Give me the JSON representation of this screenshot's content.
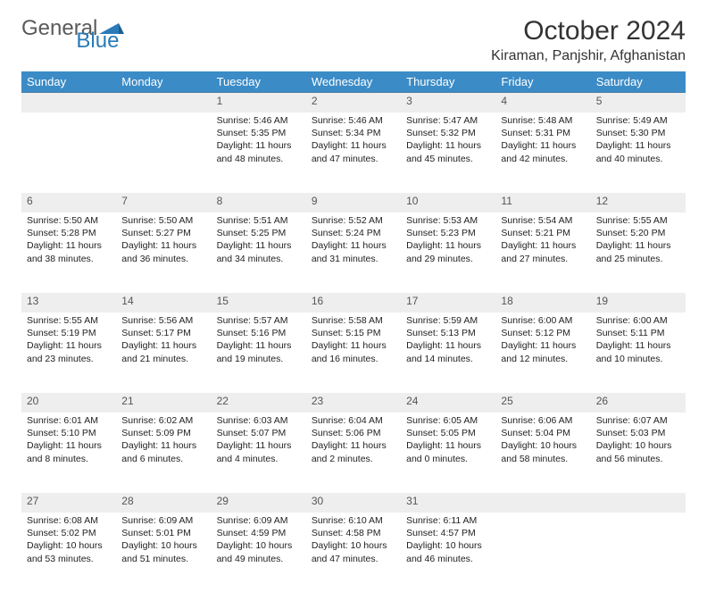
{
  "brand": {
    "part1": "General",
    "part2": "Blue",
    "mark_color": "#2a7ab8"
  },
  "title": "October 2024",
  "location": "Kiraman, Panjshir, Afghanistan",
  "colors": {
    "header_bg": "#3b8bc6",
    "header_fg": "#ffffff",
    "daynum_bg": "#eeeeee",
    "daynum_fg": "#555555",
    "divider": "#4a7ba5",
    "text": "#222222"
  },
  "weekdays": [
    "Sunday",
    "Monday",
    "Tuesday",
    "Wednesday",
    "Thursday",
    "Friday",
    "Saturday"
  ],
  "weeks": [
    [
      null,
      null,
      {
        "n": "1",
        "sr": "Sunrise: 5:46 AM",
        "ss": "Sunset: 5:35 PM",
        "dl": "Daylight: 11 hours and 48 minutes."
      },
      {
        "n": "2",
        "sr": "Sunrise: 5:46 AM",
        "ss": "Sunset: 5:34 PM",
        "dl": "Daylight: 11 hours and 47 minutes."
      },
      {
        "n": "3",
        "sr": "Sunrise: 5:47 AM",
        "ss": "Sunset: 5:32 PM",
        "dl": "Daylight: 11 hours and 45 minutes."
      },
      {
        "n": "4",
        "sr": "Sunrise: 5:48 AM",
        "ss": "Sunset: 5:31 PM",
        "dl": "Daylight: 11 hours and 42 minutes."
      },
      {
        "n": "5",
        "sr": "Sunrise: 5:49 AM",
        "ss": "Sunset: 5:30 PM",
        "dl": "Daylight: 11 hours and 40 minutes."
      }
    ],
    [
      {
        "n": "6",
        "sr": "Sunrise: 5:50 AM",
        "ss": "Sunset: 5:28 PM",
        "dl": "Daylight: 11 hours and 38 minutes."
      },
      {
        "n": "7",
        "sr": "Sunrise: 5:50 AM",
        "ss": "Sunset: 5:27 PM",
        "dl": "Daylight: 11 hours and 36 minutes."
      },
      {
        "n": "8",
        "sr": "Sunrise: 5:51 AM",
        "ss": "Sunset: 5:25 PM",
        "dl": "Daylight: 11 hours and 34 minutes."
      },
      {
        "n": "9",
        "sr": "Sunrise: 5:52 AM",
        "ss": "Sunset: 5:24 PM",
        "dl": "Daylight: 11 hours and 31 minutes."
      },
      {
        "n": "10",
        "sr": "Sunrise: 5:53 AM",
        "ss": "Sunset: 5:23 PM",
        "dl": "Daylight: 11 hours and 29 minutes."
      },
      {
        "n": "11",
        "sr": "Sunrise: 5:54 AM",
        "ss": "Sunset: 5:21 PM",
        "dl": "Daylight: 11 hours and 27 minutes."
      },
      {
        "n": "12",
        "sr": "Sunrise: 5:55 AM",
        "ss": "Sunset: 5:20 PM",
        "dl": "Daylight: 11 hours and 25 minutes."
      }
    ],
    [
      {
        "n": "13",
        "sr": "Sunrise: 5:55 AM",
        "ss": "Sunset: 5:19 PM",
        "dl": "Daylight: 11 hours and 23 minutes."
      },
      {
        "n": "14",
        "sr": "Sunrise: 5:56 AM",
        "ss": "Sunset: 5:17 PM",
        "dl": "Daylight: 11 hours and 21 minutes."
      },
      {
        "n": "15",
        "sr": "Sunrise: 5:57 AM",
        "ss": "Sunset: 5:16 PM",
        "dl": "Daylight: 11 hours and 19 minutes."
      },
      {
        "n": "16",
        "sr": "Sunrise: 5:58 AM",
        "ss": "Sunset: 5:15 PM",
        "dl": "Daylight: 11 hours and 16 minutes."
      },
      {
        "n": "17",
        "sr": "Sunrise: 5:59 AM",
        "ss": "Sunset: 5:13 PM",
        "dl": "Daylight: 11 hours and 14 minutes."
      },
      {
        "n": "18",
        "sr": "Sunrise: 6:00 AM",
        "ss": "Sunset: 5:12 PM",
        "dl": "Daylight: 11 hours and 12 minutes."
      },
      {
        "n": "19",
        "sr": "Sunrise: 6:00 AM",
        "ss": "Sunset: 5:11 PM",
        "dl": "Daylight: 11 hours and 10 minutes."
      }
    ],
    [
      {
        "n": "20",
        "sr": "Sunrise: 6:01 AM",
        "ss": "Sunset: 5:10 PM",
        "dl": "Daylight: 11 hours and 8 minutes."
      },
      {
        "n": "21",
        "sr": "Sunrise: 6:02 AM",
        "ss": "Sunset: 5:09 PM",
        "dl": "Daylight: 11 hours and 6 minutes."
      },
      {
        "n": "22",
        "sr": "Sunrise: 6:03 AM",
        "ss": "Sunset: 5:07 PM",
        "dl": "Daylight: 11 hours and 4 minutes."
      },
      {
        "n": "23",
        "sr": "Sunrise: 6:04 AM",
        "ss": "Sunset: 5:06 PM",
        "dl": "Daylight: 11 hours and 2 minutes."
      },
      {
        "n": "24",
        "sr": "Sunrise: 6:05 AM",
        "ss": "Sunset: 5:05 PM",
        "dl": "Daylight: 11 hours and 0 minutes."
      },
      {
        "n": "25",
        "sr": "Sunrise: 6:06 AM",
        "ss": "Sunset: 5:04 PM",
        "dl": "Daylight: 10 hours and 58 minutes."
      },
      {
        "n": "26",
        "sr": "Sunrise: 6:07 AM",
        "ss": "Sunset: 5:03 PM",
        "dl": "Daylight: 10 hours and 56 minutes."
      }
    ],
    [
      {
        "n": "27",
        "sr": "Sunrise: 6:08 AM",
        "ss": "Sunset: 5:02 PM",
        "dl": "Daylight: 10 hours and 53 minutes."
      },
      {
        "n": "28",
        "sr": "Sunrise: 6:09 AM",
        "ss": "Sunset: 5:01 PM",
        "dl": "Daylight: 10 hours and 51 minutes."
      },
      {
        "n": "29",
        "sr": "Sunrise: 6:09 AM",
        "ss": "Sunset: 4:59 PM",
        "dl": "Daylight: 10 hours and 49 minutes."
      },
      {
        "n": "30",
        "sr": "Sunrise: 6:10 AM",
        "ss": "Sunset: 4:58 PM",
        "dl": "Daylight: 10 hours and 47 minutes."
      },
      {
        "n": "31",
        "sr": "Sunrise: 6:11 AM",
        "ss": "Sunset: 4:57 PM",
        "dl": "Daylight: 10 hours and 46 minutes."
      },
      null,
      null
    ]
  ]
}
